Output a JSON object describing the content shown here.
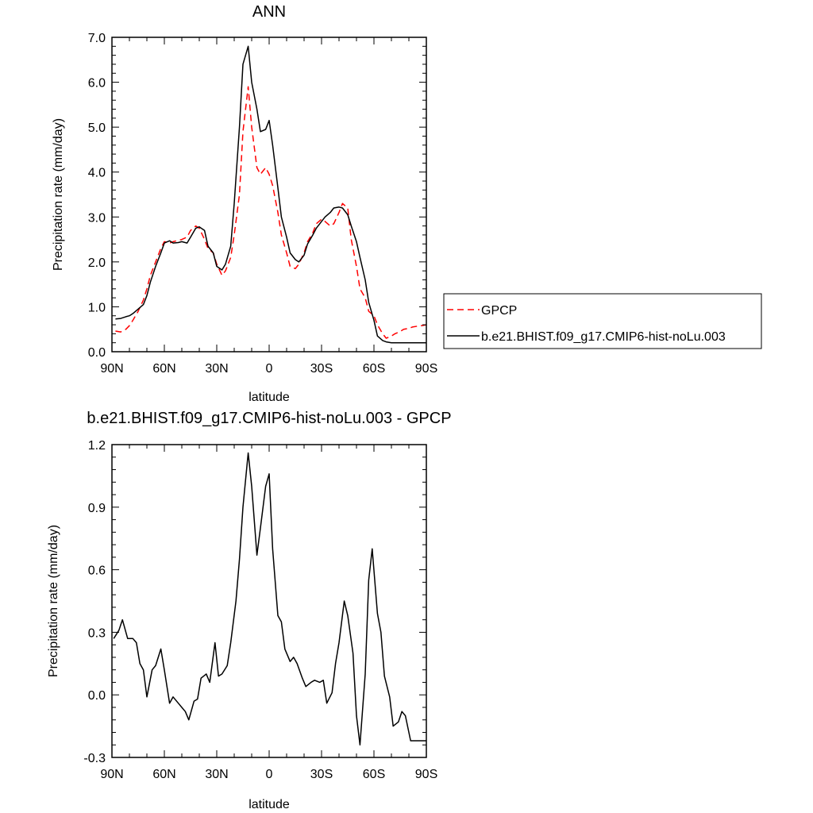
{
  "chart_data": [
    {
      "type": "line",
      "title": "ANN",
      "xlabel": "latitude",
      "ylabel": "Precipitation rate (mm/day)",
      "xlim": [
        90,
        -90
      ],
      "ylim": [
        0.0,
        7.0
      ],
      "x_ticks": [
        {
          "value": 90,
          "label": "90N"
        },
        {
          "value": 60,
          "label": "60N"
        },
        {
          "value": 30,
          "label": "30N"
        },
        {
          "value": 0,
          "label": "0"
        },
        {
          "value": -30,
          "label": "30S"
        },
        {
          "value": -60,
          "label": "60S"
        },
        {
          "value": -90,
          "label": "90S"
        }
      ],
      "y_ticks": [
        {
          "value": 0,
          "label": "0.0"
        },
        {
          "value": 1,
          "label": "1.0"
        },
        {
          "value": 2,
          "label": "2.0"
        },
        {
          "value": 3,
          "label": "3.0"
        },
        {
          "value": 4,
          "label": "4.0"
        },
        {
          "value": 5,
          "label": "5.0"
        },
        {
          "value": 6,
          "label": "6.0"
        },
        {
          "value": 7,
          "label": "7.0"
        }
      ],
      "legend_position": "right",
      "series": [
        {
          "name": "GPCP",
          "color": "#ff0000",
          "dash": "dashed",
          "x": [
            88,
            85,
            82,
            80,
            78,
            75,
            72,
            70,
            68,
            65,
            62,
            60,
            57,
            55,
            52,
            50,
            47,
            45,
            42,
            40,
            37,
            35,
            32,
            30,
            27,
            25,
            22,
            20,
            17,
            15,
            12,
            10,
            7,
            5,
            2,
            0,
            -2,
            -5,
            -7,
            -10,
            -12,
            -15,
            -17,
            -20,
            -22,
            -25,
            -27,
            -30,
            -32,
            -35,
            -37,
            -40,
            -42,
            -45,
            -47,
            -50,
            -52,
            -55,
            -57,
            -60,
            -62,
            -65,
            -67,
            -70,
            -72,
            -75,
            -77,
            -80,
            -82,
            -85,
            -87,
            -90
          ],
          "y": [
            0.46,
            0.44,
            0.5,
            0.58,
            0.7,
            0.9,
            1.15,
            1.4,
            1.7,
            2.0,
            2.3,
            2.45,
            2.42,
            2.45,
            2.48,
            2.5,
            2.55,
            2.7,
            2.8,
            2.75,
            2.5,
            2.3,
            2.2,
            1.95,
            1.7,
            1.8,
            2.1,
            2.6,
            3.5,
            4.9,
            5.9,
            5.0,
            4.1,
            3.95,
            4.1,
            3.95,
            3.7,
            3.1,
            2.6,
            2.2,
            1.9,
            1.85,
            1.95,
            2.2,
            2.45,
            2.65,
            2.85,
            2.95,
            2.9,
            2.8,
            2.85,
            3.1,
            3.3,
            3.2,
            2.5,
            1.9,
            1.4,
            1.2,
            0.9,
            0.8,
            0.6,
            0.4,
            0.3,
            0.35,
            0.4,
            0.45,
            0.5,
            0.52,
            0.55,
            0.57,
            0.58,
            0.6
          ]
        },
        {
          "name": "b.e21.BHIST.f09_g17.CMIP6-hist-noLu.003",
          "color": "#000000",
          "dash": "solid",
          "x": [
            88,
            85,
            82,
            80,
            78,
            75,
            72,
            70,
            68,
            65,
            62,
            60,
            57,
            55,
            52,
            50,
            47,
            45,
            42,
            40,
            37,
            35,
            32,
            30,
            27,
            25,
            22,
            20,
            17,
            15,
            12,
            10,
            7,
            5,
            2,
            0,
            -2,
            -5,
            -7,
            -10,
            -12,
            -15,
            -17,
            -20,
            -22,
            -25,
            -27,
            -30,
            -32,
            -35,
            -37,
            -40,
            -42,
            -45,
            -47,
            -50,
            -52,
            -55,
            -57,
            -60,
            -62,
            -65,
            -67,
            -70,
            -72,
            -75,
            -77,
            -80,
            -82,
            -85,
            -87,
            -90
          ],
          "y": [
            0.73,
            0.74,
            0.78,
            0.8,
            0.85,
            0.95,
            1.05,
            1.25,
            1.55,
            1.9,
            2.2,
            2.42,
            2.47,
            2.42,
            2.43,
            2.45,
            2.42,
            2.55,
            2.75,
            2.78,
            2.7,
            2.35,
            2.2,
            1.9,
            1.82,
            1.95,
            2.35,
            3.3,
            5.0,
            6.4,
            6.8,
            6.0,
            5.4,
            4.9,
            4.95,
            5.15,
            4.6,
            3.65,
            3.0,
            2.55,
            2.2,
            2.05,
            2.0,
            2.15,
            2.4,
            2.6,
            2.75,
            2.9,
            3.0,
            3.1,
            3.2,
            3.22,
            3.2,
            3.05,
            2.8,
            2.45,
            2.1,
            1.6,
            1.1,
            0.7,
            0.35,
            0.25,
            0.22,
            0.2,
            0.2,
            0.2,
            0.2,
            0.2,
            0.2,
            0.2,
            0.2,
            0.2
          ]
        }
      ]
    },
    {
      "type": "line",
      "title": "b.e21.BHIST.f09_g17.CMIP6-hist-noLu.003 - GPCP",
      "xlabel": "latitude",
      "ylabel": "Precipitation rate (mm/day)",
      "xlim": [
        90,
        -90
      ],
      "ylim": [
        -0.3,
        1.2
      ],
      "x_ticks": [
        {
          "value": 90,
          "label": "90N"
        },
        {
          "value": 60,
          "label": "60N"
        },
        {
          "value": 30,
          "label": "30N"
        },
        {
          "value": 0,
          "label": "0"
        },
        {
          "value": -30,
          "label": "30S"
        },
        {
          "value": -60,
          "label": "60S"
        },
        {
          "value": -90,
          "label": "90S"
        }
      ],
      "y_ticks": [
        {
          "value": -0.3,
          "label": "-0.3"
        },
        {
          "value": 0.0,
          "label": "0.0"
        },
        {
          "value": 0.3,
          "label": "0.3"
        },
        {
          "value": 0.6,
          "label": "0.6"
        },
        {
          "value": 0.9,
          "label": "0.9"
        },
        {
          "value": 1.2,
          "label": "1.2"
        }
      ],
      "series": [
        {
          "color": "#000000",
          "dash": "solid",
          "x": [
            89,
            86,
            84,
            81,
            78,
            76,
            74,
            72,
            70,
            67,
            65,
            62,
            60,
            57,
            55,
            52,
            50,
            48,
            46,
            43,
            41,
            39,
            36,
            34,
            31,
            29,
            27,
            24,
            22,
            19,
            17,
            15,
            12,
            10,
            7,
            5,
            2,
            0,
            -2,
            -5,
            -7,
            -9,
            -12,
            -14,
            -16,
            -19,
            -21,
            -24,
            -26,
            -29,
            -31,
            -33,
            -36,
            -38,
            -40,
            -43,
            -45,
            -48,
            -50,
            -52,
            -55,
            -57,
            -59,
            -62,
            -64,
            -66,
            -69,
            -71,
            -74,
            -76,
            -78,
            -81,
            -83,
            -86,
            -88,
            -90
          ],
          "y": [
            0.27,
            0.31,
            0.36,
            0.27,
            0.27,
            0.25,
            0.15,
            0.12,
            -0.01,
            0.12,
            0.14,
            0.22,
            0.12,
            -0.04,
            -0.01,
            -0.04,
            -0.06,
            -0.08,
            -0.12,
            -0.03,
            -0.02,
            0.08,
            0.1,
            0.06,
            0.25,
            0.09,
            0.1,
            0.14,
            0.25,
            0.45,
            0.65,
            0.9,
            1.16,
            1.0,
            0.67,
            0.8,
            1.0,
            1.06,
            0.7,
            0.38,
            0.35,
            0.22,
            0.16,
            0.18,
            0.15,
            0.08,
            0.04,
            0.06,
            0.07,
            0.06,
            0.07,
            -0.04,
            0.01,
            0.15,
            0.25,
            0.45,
            0.38,
            0.2,
            -0.1,
            -0.24,
            0.1,
            0.55,
            0.7,
            0.39,
            0.3,
            0.09,
            -0.01,
            -0.15,
            -0.13,
            -0.08,
            -0.1,
            -0.22,
            -0.22,
            -0.22,
            -0.22,
            -0.22
          ]
        }
      ]
    }
  ]
}
